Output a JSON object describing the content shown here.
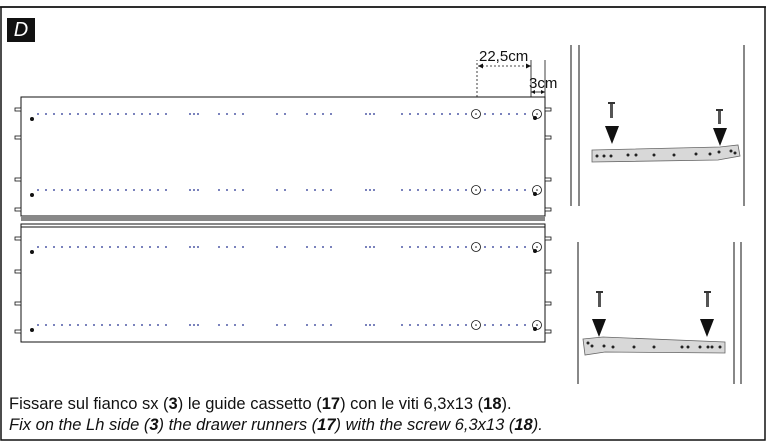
{
  "step": {
    "label": "D"
  },
  "dimensions": {
    "runner_offset": "22,5cm",
    "edge_offset": "3cm"
  },
  "caption": {
    "it": {
      "prefix": "Fissare sul fianco sx (",
      "n1": "3",
      "mid1": ") le guide cassetto (",
      "n2": "17",
      "mid2": ") con le viti 6,3x13 (",
      "n3": "18",
      "suffix": ")."
    },
    "en": {
      "prefix": "Fix on the Lh side (",
      "n1": "3",
      "mid1": ") the drawer runners (",
      "n2": "17",
      "mid2": ") with the screw 6,3x13 (",
      "n3": "18",
      "suffix": ")."
    }
  },
  "colors": {
    "dots": "#1c2a8c",
    "line": "#111111",
    "runner": "#d8d8d8"
  }
}
